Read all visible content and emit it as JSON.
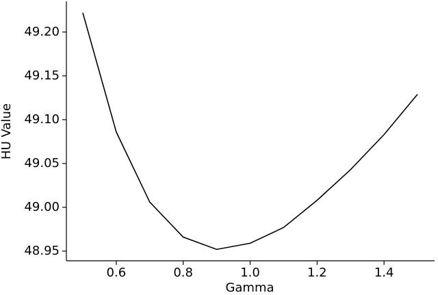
{
  "chart_data": {
    "type": "line",
    "xlabel": "Gamma",
    "ylabel": "HU Value",
    "color": "#000000",
    "x": [
      0.5,
      0.6,
      0.7,
      0.8,
      0.9,
      1.0,
      1.1,
      1.2,
      1.3,
      1.4,
      1.5
    ],
    "values": [
      49.222,
      49.086,
      49.006,
      48.966,
      48.952,
      48.959,
      48.977,
      49.008,
      49.043,
      49.083,
      49.129
    ],
    "xlim": [
      0.451,
      1.551
    ],
    "ylim": [
      48.939,
      49.235
    ],
    "xticks": [
      0.6,
      0.8,
      {
        "value": 1.0,
        "label": "1.0"
      },
      1.2,
      1.4
    ],
    "yticks": [
      {
        "value": 48.95,
        "label": "48.95"
      },
      {
        "value": 49.0,
        "label": "49.00"
      },
      49.05,
      {
        "value": 49.1,
        "label": "49.10"
      },
      49.15,
      {
        "value": 49.2,
        "label": "49.20"
      }
    ],
    "grid": false
  }
}
